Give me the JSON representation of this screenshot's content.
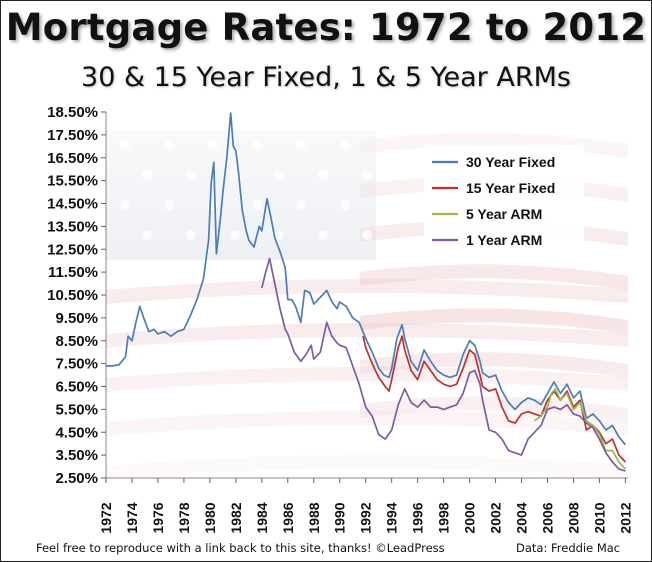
{
  "title": "Mortgage Rates: 1972 to 2012",
  "subtitle": "30 & 15 Year Fixed, 1 & 5 Year ARMs",
  "footer_left": "Feel free to reproduce with a link back to this site, thanks! ©LeadPress",
  "footer_right": "Data: Freddie Mac",
  "colors": {
    "series_30yr": "#4a7ebb",
    "series_15yr": "#c0302c",
    "series_5arm": "#9aba4a",
    "series_1arm": "#7d5ba6",
    "flag_red": "#e3a3a6",
    "flag_blue": "#c4cbd8"
  },
  "chart_data": {
    "type": "line",
    "title": "Mortgage Rates: 1972 to 2012",
    "subtitle": "30 & 15 Year Fixed, 1 & 5 Year ARMs",
    "xlabel": "",
    "ylabel": "",
    "xlim": [
      1972,
      2012.2
    ],
    "ylim": [
      2.5,
      18.5
    ],
    "y_ticks": [
      "18.50%",
      "17.50%",
      "16.50%",
      "15.50%",
      "14.50%",
      "13.50%",
      "12.50%",
      "11.50%",
      "10.50%",
      "9.50%",
      "8.50%",
      "7.50%",
      "6.50%",
      "5.50%",
      "4.50%",
      "3.50%",
      "2.50%"
    ],
    "y_tick_values": [
      18.5,
      17.5,
      16.5,
      15.5,
      14.5,
      13.5,
      12.5,
      11.5,
      10.5,
      9.5,
      8.5,
      7.5,
      6.5,
      5.5,
      4.5,
      3.5,
      2.5
    ],
    "x_ticks": [
      "1972",
      "1974",
      "1976",
      "1978",
      "1980",
      "1982",
      "1984",
      "1986",
      "1988",
      "1990",
      "1992",
      "1994",
      "1996",
      "1998",
      "2000",
      "2002",
      "2004",
      "2006",
      "2008",
      "2010",
      "2012"
    ],
    "x_tick_values": [
      1972,
      1974,
      1976,
      1978,
      1980,
      1982,
      1984,
      1986,
      1988,
      1990,
      1992,
      1994,
      1996,
      1998,
      2000,
      2002,
      2004,
      2006,
      2008,
      2010,
      2012
    ],
    "grid": false,
    "legend_position": "top-right",
    "series": [
      {
        "name": "30 Year Fixed",
        "color": "#4a7ebb",
        "x": [
          1972,
          1972.5,
          1973,
          1973.5,
          1973.7,
          1974,
          1974.3,
          1974.6,
          1974.9,
          1975.3,
          1975.7,
          1976,
          1976.5,
          1977,
          1977.5,
          1978,
          1978.5,
          1979,
          1979.5,
          1979.9,
          1980.1,
          1980.3,
          1980.5,
          1980.8,
          1981,
          1981.3,
          1981.6,
          1981.8,
          1982,
          1982.2,
          1982.5,
          1982.8,
          1983,
          1983.4,
          1983.8,
          1984,
          1984.4,
          1984.7,
          1985,
          1985.4,
          1985.8,
          1986,
          1986.3,
          1986.6,
          1987,
          1987.3,
          1987.7,
          1988,
          1988.5,
          1989,
          1989.4,
          1989.8,
          1990,
          1990.5,
          1991,
          1991.5,
          1992,
          1992.5,
          1993,
          1993.4,
          1993.8,
          1994,
          1994.4,
          1994.8,
          1995,
          1995.5,
          1996,
          1996.5,
          1997,
          1997.5,
          1998,
          1998.5,
          1999,
          1999.5,
          2000,
          2000.4,
          2000.8,
          2001,
          2001.5,
          2002,
          2002.5,
          2003,
          2003.5,
          2004,
          2004.5,
          2005,
          2005.5,
          2006,
          2006.5,
          2007,
          2007.5,
          2008,
          2008.5,
          2009,
          2009.5,
          2010,
          2010.5,
          2011,
          2011.5,
          2012
        ],
        "values": [
          7.4,
          7.4,
          7.45,
          7.8,
          8.7,
          8.5,
          9.3,
          10.0,
          9.5,
          8.9,
          9.0,
          8.8,
          8.9,
          8.7,
          8.9,
          9.0,
          9.6,
          10.3,
          11.2,
          12.9,
          15.4,
          16.3,
          12.3,
          13.8,
          15.0,
          16.5,
          18.45,
          17.0,
          16.8,
          15.9,
          14.2,
          13.3,
          12.9,
          12.6,
          13.5,
          13.3,
          14.7,
          13.9,
          13.0,
          12.4,
          11.7,
          10.3,
          10.3,
          10.0,
          9.3,
          10.7,
          10.6,
          10.1,
          10.4,
          10.7,
          10.2,
          9.9,
          10.2,
          10.0,
          9.5,
          9.3,
          8.6,
          8.0,
          7.3,
          7.0,
          6.9,
          7.3,
          8.6,
          9.2,
          8.6,
          7.6,
          7.2,
          8.1,
          7.6,
          7.2,
          7.0,
          6.9,
          7.0,
          7.9,
          8.5,
          8.3,
          7.6,
          7.1,
          6.9,
          7.0,
          6.3,
          5.8,
          5.5,
          5.8,
          6.0,
          5.9,
          5.7,
          6.2,
          6.7,
          6.2,
          6.6,
          6.0,
          6.3,
          5.1,
          5.3,
          5.0,
          4.6,
          4.8,
          4.3,
          3.95
        ]
      },
      {
        "name": "15 Year Fixed",
        "color": "#c0302c",
        "x": [
          1991.8,
          1992,
          1992.5,
          1993,
          1993.5,
          1993.8,
          1994,
          1994.5,
          1994.8,
          1995,
          1995.5,
          1996,
          1996.5,
          1997,
          1997.5,
          1998,
          1998.5,
          1999,
          1999.5,
          2000,
          2000.4,
          2000.8,
          2001,
          2001.5,
          2002,
          2002.5,
          2003,
          2003.5,
          2004,
          2004.5,
          2005,
          2005.5,
          2006,
          2006.5,
          2007,
          2007.5,
          2008,
          2008.5,
          2009,
          2009.5,
          2010,
          2010.5,
          2011,
          2011.5,
          2012
        ],
        "values": [
          8.7,
          8.2,
          7.5,
          6.9,
          6.5,
          6.3,
          6.8,
          8.2,
          8.7,
          8.1,
          7.2,
          6.8,
          7.6,
          7.2,
          6.8,
          6.6,
          6.5,
          6.6,
          7.3,
          8.1,
          7.9,
          7.0,
          6.5,
          6.3,
          6.4,
          5.6,
          5.0,
          4.9,
          5.3,
          5.4,
          5.3,
          5.2,
          5.9,
          6.3,
          5.9,
          6.3,
          5.6,
          5.9,
          4.6,
          4.8,
          4.5,
          4.0,
          4.2,
          3.5,
          3.2
        ]
      },
      {
        "name": "5 Year ARM",
        "color": "#9aba4a",
        "x": [
          2005,
          2005.5,
          2006,
          2006.3,
          2006.6,
          2007,
          2007.5,
          2008,
          2008.5,
          2009,
          2009.5,
          2010,
          2010.5,
          2011,
          2011.5,
          2012
        ],
        "values": [
          5.0,
          5.2,
          5.6,
          6.2,
          6.4,
          5.9,
          6.2,
          5.5,
          5.8,
          5.0,
          4.8,
          4.4,
          3.7,
          3.7,
          3.2,
          2.9
        ]
      },
      {
        "name": "1 Year ARM",
        "color": "#7d5ba6",
        "x": [
          1984,
          1984.3,
          1984.6,
          1985,
          1985.4,
          1985.8,
          1986,
          1986.5,
          1987,
          1987.4,
          1987.8,
          1988,
          1988.5,
          1989,
          1989.4,
          1989.8,
          1990,
          1990.5,
          1991,
          1991.5,
          1992,
          1992.5,
          1993,
          1993.5,
          1994,
          1994.5,
          1995,
          1995.5,
          1996,
          1996.5,
          1997,
          1997.5,
          1998,
          1998.5,
          1999,
          1999.5,
          2000,
          2000.4,
          2000.8,
          2001,
          2001.5,
          2002,
          2002.5,
          2003,
          2003.5,
          2004,
          2004.5,
          2005,
          2005.5,
          2006,
          2006.5,
          2007,
          2007.5,
          2008,
          2008.5,
          2009,
          2009.5,
          2010,
          2010.5,
          2011,
          2011.5,
          2012
        ],
        "values": [
          10.8,
          11.5,
          12.1,
          11.0,
          9.9,
          9.0,
          8.8,
          8.0,
          7.6,
          7.9,
          8.3,
          7.7,
          8.0,
          9.3,
          8.7,
          8.4,
          8.3,
          8.2,
          7.4,
          6.6,
          5.6,
          5.2,
          4.4,
          4.2,
          4.6,
          5.7,
          6.4,
          5.8,
          5.6,
          5.9,
          5.6,
          5.6,
          5.5,
          5.6,
          5.7,
          6.2,
          7.1,
          7.2,
          6.6,
          5.9,
          4.6,
          4.5,
          4.2,
          3.7,
          3.6,
          3.5,
          4.2,
          4.5,
          4.8,
          5.5,
          5.6,
          5.5,
          5.7,
          5.3,
          5.2,
          4.9,
          4.7,
          4.2,
          3.6,
          3.2,
          2.9,
          2.8
        ]
      }
    ]
  }
}
